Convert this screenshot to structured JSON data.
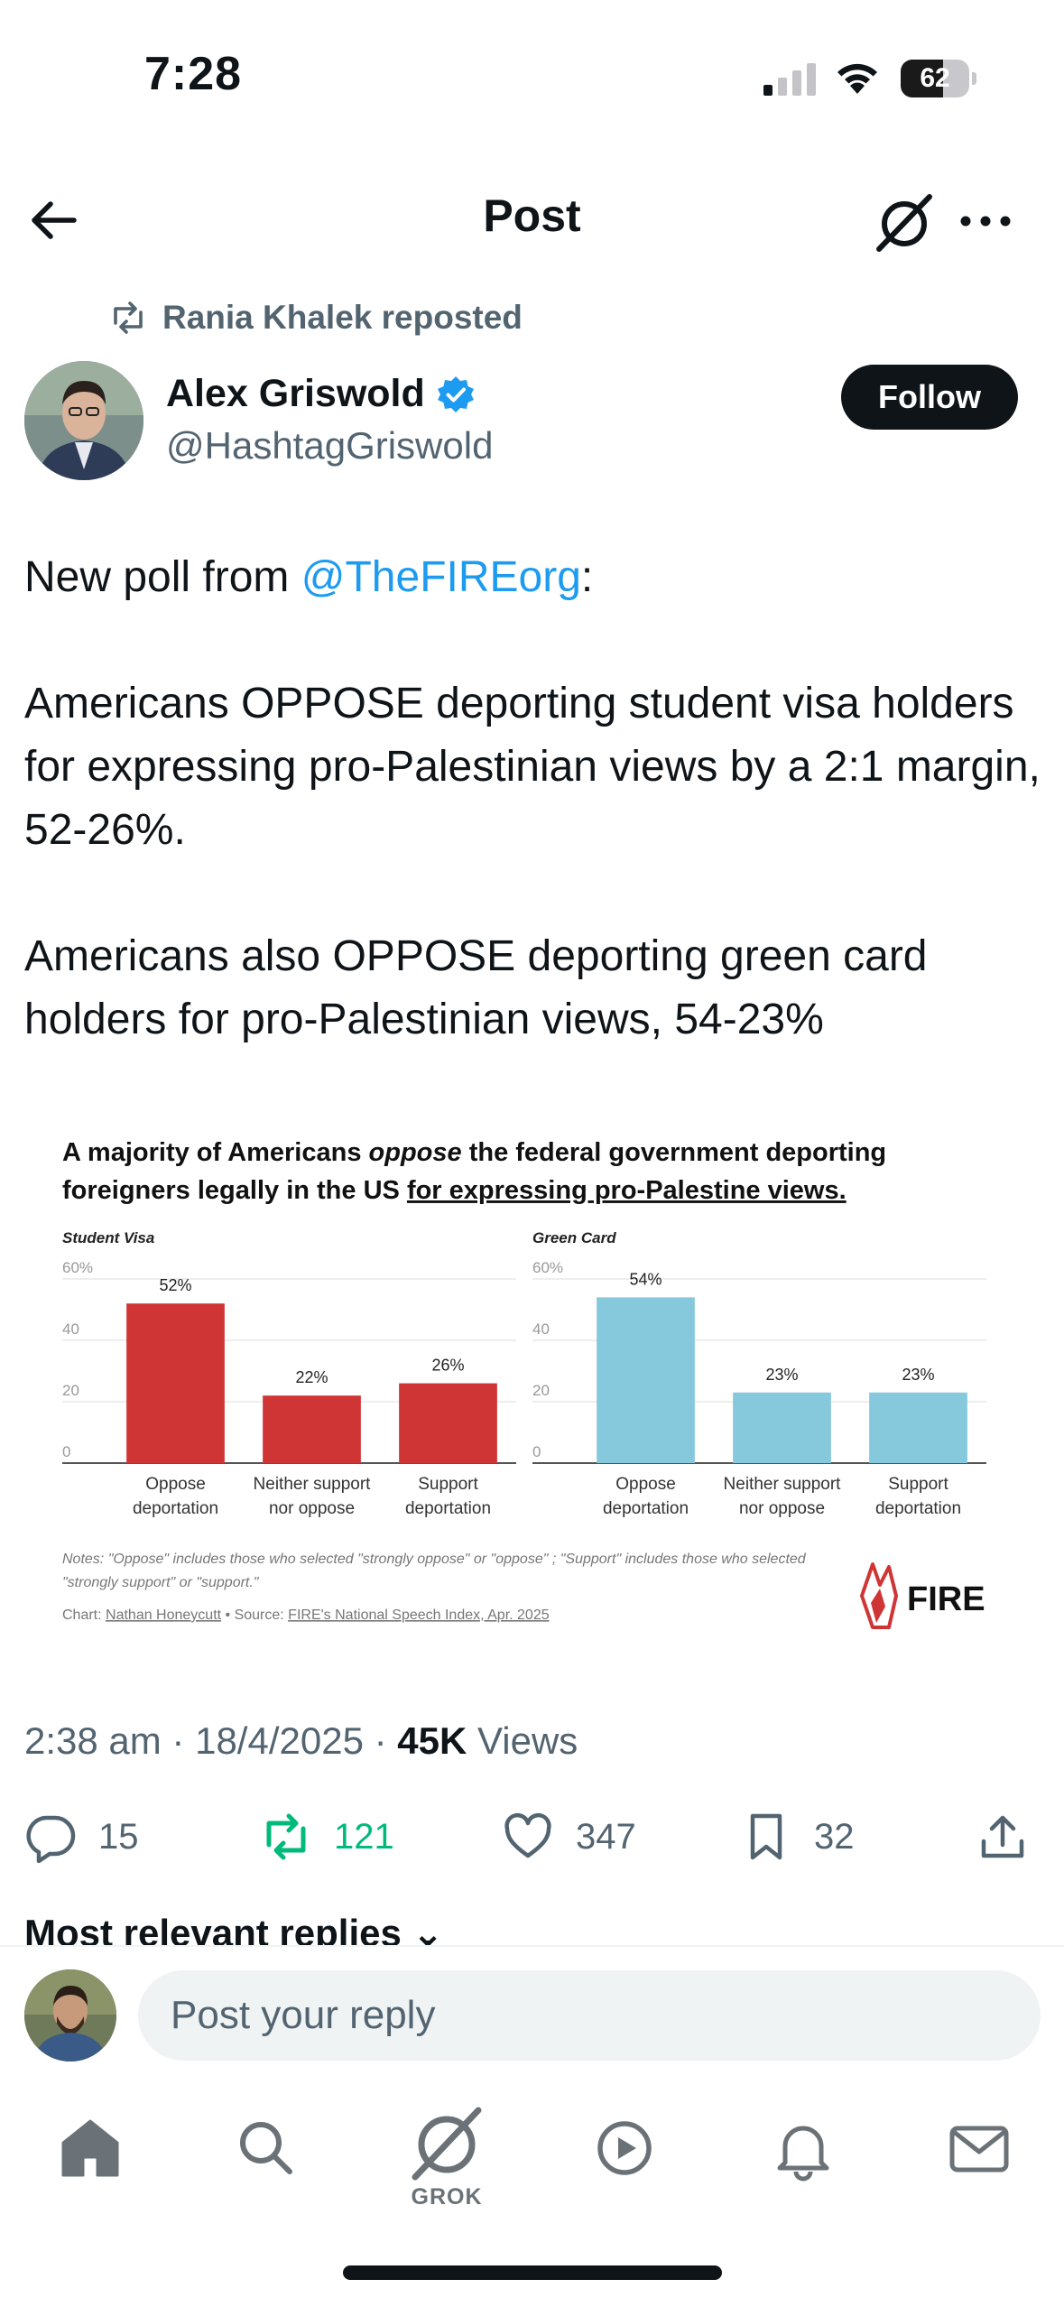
{
  "status_bar": {
    "time": "7:28",
    "battery": "62",
    "battery_level": 0.62
  },
  "header": {
    "title": "Post"
  },
  "repost": {
    "label": "Rania Khalek reposted"
  },
  "author": {
    "name": "Alex Griswold",
    "handle": "@HashtagGriswold",
    "verified": true
  },
  "follow_label": "Follow",
  "post": {
    "line1_prefix": "New poll from ",
    "line1_mention": "@TheFIREorg",
    "line1_suffix": ":",
    "paragraph2": "Americans OPPOSE deporting student visa holders for expressing pro-Palestinian views by a 2:1 margin, 52-26%.",
    "paragraph3": "Americans also OPPOSE deporting green card holders for pro-Palestinian views, 54-23%"
  },
  "chart_image": {
    "title_part1": "A majority of Americans ",
    "title_emph": "oppose",
    "title_part2": " the federal government deporting",
    "title_line2_plain": "foreigners legally in the US ",
    "title_line2_underlined": "for expressing pro-Palestine views.",
    "notes_line1": "Notes: \"Oppose\" includes those who selected \"strongly oppose\" or \"oppose\" ; \"Support\" includes those who selected",
    "notes_line2": "\"strongly support\" or \"support.\"",
    "credit_prefix": "Chart: ",
    "credit_author": "Nathan Honeycutt",
    "credit_mid": " • Source: ",
    "credit_source": "FIRE's National Speech Index, Apr. 2025",
    "logo_text": "FIRE"
  },
  "chart_data": [
    {
      "type": "bar",
      "title": "Student Visa",
      "categories": [
        [
          "Oppose",
          "deportation"
        ],
        [
          "Neither support",
          "nor oppose"
        ],
        [
          "Support",
          "deportation"
        ]
      ],
      "values": [
        52,
        22,
        26
      ],
      "value_labels": [
        "52%",
        "22%",
        "26%"
      ],
      "y_ticks": [
        "0",
        "20",
        "40",
        "60%"
      ],
      "ylim": [
        0,
        60
      ],
      "grid": true,
      "color": "#d03535"
    },
    {
      "type": "bar",
      "title": "Green Card",
      "categories": [
        [
          "Oppose",
          "deportation"
        ],
        [
          "Neither support",
          "nor oppose"
        ],
        [
          "Support",
          "deportation"
        ]
      ],
      "values": [
        54,
        23,
        23
      ],
      "value_labels": [
        "54%",
        "23%",
        "23%"
      ],
      "y_ticks": [
        "0",
        "20",
        "40",
        "60%"
      ],
      "ylim": [
        0,
        60
      ],
      "grid": true,
      "color": "#86c8dc"
    }
  ],
  "meta": {
    "time": "2:38 am",
    "sep": " · ",
    "date": "18/4/2025",
    "views_count": "45K",
    "views_label": " Views"
  },
  "actions": {
    "replies": "15",
    "reposts": "121",
    "likes": "347",
    "bookmarks": "32"
  },
  "replies_header": "Most relevant replies",
  "reply_bar": {
    "placeholder": "Post your reply"
  },
  "tabbar": {
    "grok_label": "GROK"
  },
  "icons": [
    "signal-icon",
    "wifi-icon",
    "battery-icon",
    "back-arrow-icon",
    "grok-icon",
    "more-icon",
    "repost-icon",
    "verified-badge-icon",
    "reply-icon",
    "retweet-icon",
    "like-icon",
    "bookmark-icon",
    "share-icon",
    "home-icon",
    "search-icon",
    "play-icon",
    "bell-icon",
    "mail-icon",
    "chevron-down-icon",
    "fire-logo-icon"
  ],
  "colors": {
    "accent": "#1d9bf0",
    "retweet": "#00ba7c",
    "muted": "#536471"
  }
}
